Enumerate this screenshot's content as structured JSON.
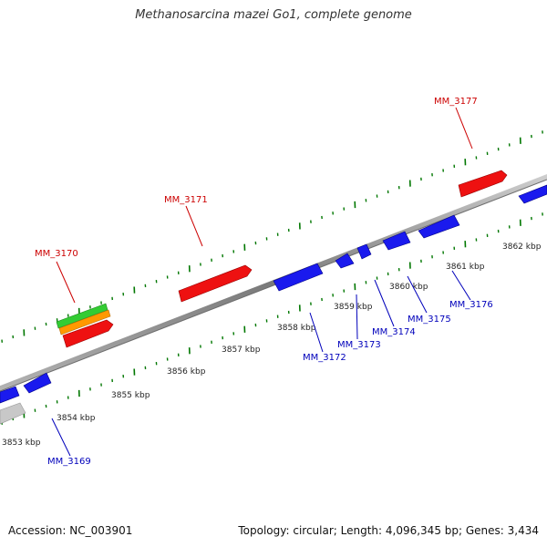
{
  "title": "Methanosarcina mazei Go1, complete genome",
  "footer": {
    "accession": "Accession: NC_003901",
    "summary": "Topology: circular; Length: 4,096,345 bp; Genes: 3,434"
  },
  "colors": {
    "forward_gene": "#ee1111",
    "reverse_gene": "#1a1aee",
    "top_label": "#cc0000",
    "bottom_label": "#0000bb",
    "tick": "#007700",
    "backbone": "#888888",
    "cds_green": "#33cc33",
    "cds_orange": "#ff9900",
    "pseudo": "#c8c8c8"
  },
  "scale_labels": [
    {
      "kbp": 3853,
      "text": "3853 kbp"
    },
    {
      "kbp": 3854,
      "text": "3854 kbp"
    },
    {
      "kbp": 3855,
      "text": "3855 kbp"
    },
    {
      "kbp": 3856,
      "text": "3856 kbp"
    },
    {
      "kbp": 3857,
      "text": "3857 kbp"
    },
    {
      "kbp": 3858,
      "text": "3858 kbp"
    },
    {
      "kbp": 3859,
      "text": "3859 kbp"
    },
    {
      "kbp": 3860,
      "text": "3860 kbp"
    },
    {
      "kbp": 3861,
      "text": "3861 kbp"
    },
    {
      "kbp": 3862,
      "text": "3862 kbp"
    }
  ],
  "top_labels": [
    "MM_3170",
    "MM_3171",
    "MM_3177"
  ],
  "bottom_labels": [
    "MM_3169",
    "MM_3172",
    "MM_3173",
    "MM_3174",
    "MM_3175",
    "MM_3176"
  ]
}
